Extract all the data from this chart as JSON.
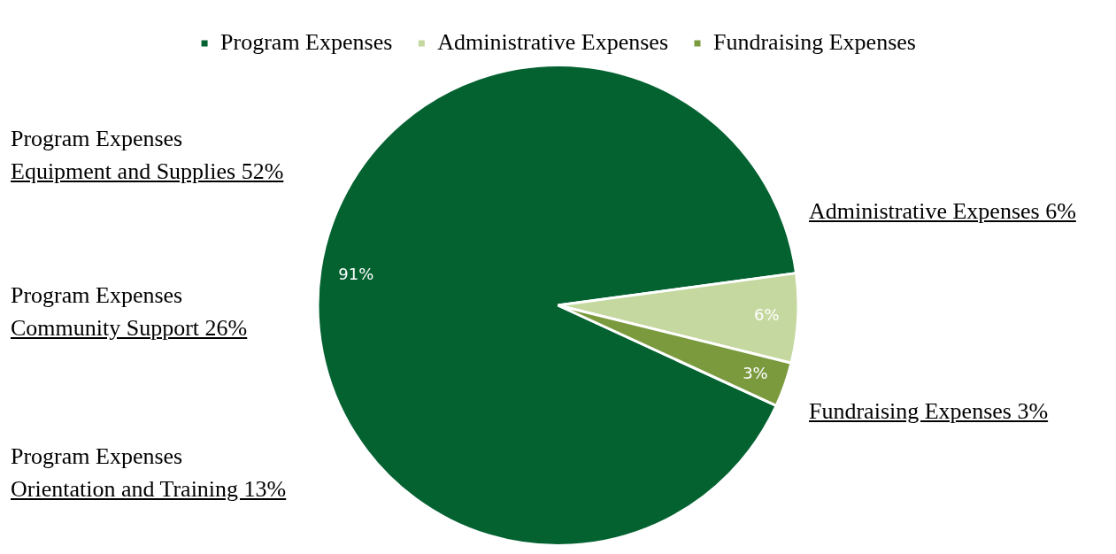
{
  "chart_data": {
    "type": "pie",
    "categories": [
      "Program Expenses",
      "Administrative Expenses",
      "Fundraising Expenses"
    ],
    "values": [
      91,
      6,
      3
    ],
    "colors": [
      "#046231",
      "#c4d89f",
      "#7b9a3e"
    ],
    "value_labels": [
      "91%",
      "6%",
      "3%"
    ],
    "legend": "top",
    "annotations": [
      "Program Expenses\nEquipment and Supplies 52%",
      "Program Expenses\nCommunity Support 26%",
      "Program Expenses\nOrientation and Training 13%",
      "Administrative Expenses 6%",
      "Fundraising Expenses 3%"
    ]
  }
}
